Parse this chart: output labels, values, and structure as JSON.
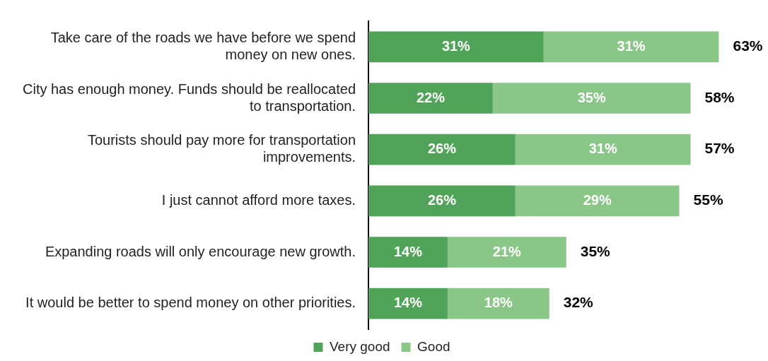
{
  "chart_data": {
    "type": "bar",
    "orientation": "horizontal",
    "stacked": true,
    "categories": [
      "Take care of the roads we have before we spend money on new ones.",
      "City has enough money. Funds should be reallocated to transportation.",
      "Tourists should pay more for transportation improvements.",
      "I just cannot afford more taxes.",
      "Expanding roads will only encourage new growth.",
      "It would be better to spend money on other priorities."
    ],
    "series": [
      {
        "name": "Very good",
        "color": "#52a35a",
        "values": [
          31,
          22,
          26,
          26,
          14,
          14
        ],
        "value_labels": [
          "31%",
          "22%",
          "26%",
          "26%",
          "14%",
          "14%"
        ]
      },
      {
        "name": "Good",
        "color": "#8bc689",
        "values": [
          31,
          35,
          31,
          29,
          21,
          18
        ],
        "value_labels": [
          "31%",
          "35%",
          "31%",
          "29%",
          "21%",
          "18%"
        ]
      }
    ],
    "totals": [
      "63%",
      "58%",
      "57%",
      "55%",
      "35%",
      "32%"
    ],
    "legend": "bottom"
  }
}
